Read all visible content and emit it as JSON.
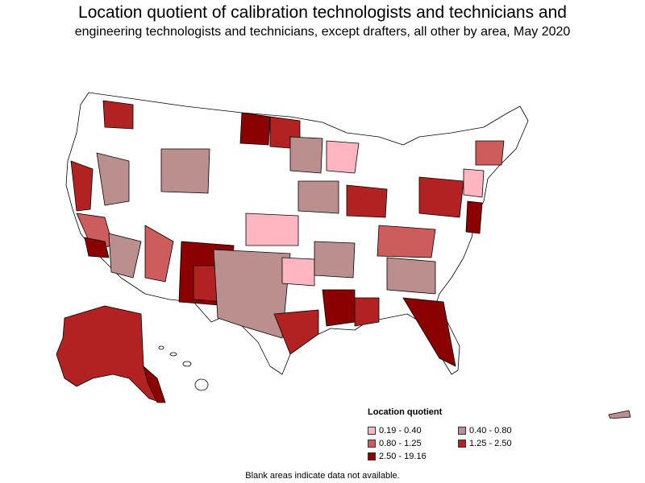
{
  "title": {
    "line1": "Location quotient of calibration technologists and technicians and",
    "line2": "engineering technologists and technicians, except drafters, all other by area, May 2020"
  },
  "legend": {
    "title": "Location quotient",
    "items": [
      {
        "label": "0.19 - 0.40",
        "color": "#ffb6c1"
      },
      {
        "label": "0.40 - 0.80",
        "color": "#bc8f8f"
      },
      {
        "label": "0.80 - 1.25",
        "color": "#cd5c5c"
      },
      {
        "label": "1.25 - 2.50",
        "color": "#b22222"
      },
      {
        "label": "2.50 - 19.16",
        "color": "#8b0000"
      }
    ]
  },
  "footnote": "Blank areas indicate data not available."
}
